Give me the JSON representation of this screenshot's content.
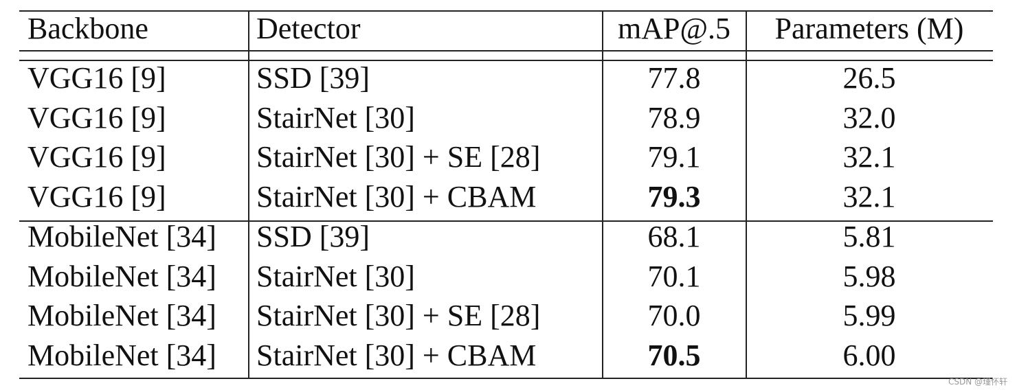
{
  "table": {
    "header": [
      "Backbone",
      "Detector",
      "mAP@.5",
      "Parameters (M)"
    ],
    "rows": [
      [
        "VGG16 [9]",
        "SSD [39]",
        "77.8",
        "26.5"
      ],
      [
        "VGG16 [9]",
        "StairNet [30]",
        "78.9",
        "32.0"
      ],
      [
        "VGG16 [9]",
        "StairNet [30] + SE [28]",
        "79.1",
        "32.1"
      ],
      [
        "VGG16 [9]",
        "StairNet [30] + CBAM",
        "79.3",
        "32.1"
      ],
      [
        "MobileNet [34]",
        "SSD [39]",
        "68.1",
        "5.81"
      ],
      [
        "MobileNet [34]",
        "StairNet [30]",
        "70.1",
        "5.98"
      ],
      [
        "MobileNet [34]",
        "StairNet [30] + SE [28]",
        "70.0",
        "5.99"
      ],
      [
        "MobileNet [34]",
        "StairNet [30] + CBAM",
        "70.5",
        "6.00"
      ]
    ]
  },
  "watermark": "CSDN @瑾怀轩"
}
